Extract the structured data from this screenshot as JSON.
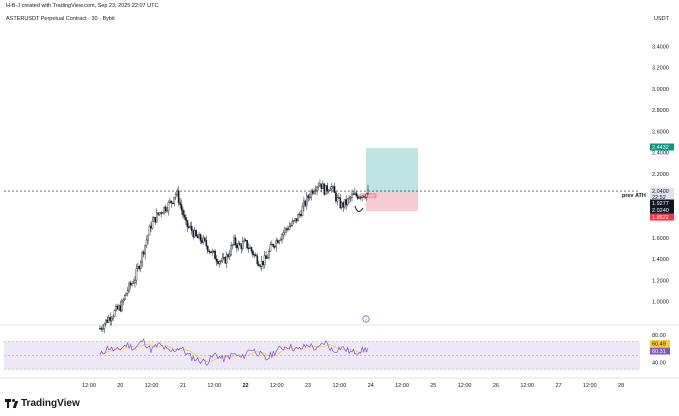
{
  "header": {
    "created_by": "H-B-J created with TradingView.com, Sep 23, 2025 22:07 UTC",
    "symbol_line": "ASTERUSDT Perpetual Contract · 30 · Bybit",
    "currency": "USDT",
    "brand": "TradingView"
  },
  "colors": {
    "candle": "#131722",
    "profit_zone": "#b2dfdb",
    "loss_zone": "#f4c7cc",
    "profit_tag": "#089981",
    "loss_tag": "#f23645",
    "rsi_line": "#7e57c2",
    "rsi_ma": "#f7c948",
    "rsi_band": "#ede7f6"
  },
  "annotations": {
    "level_label": "prev ATH",
    "price_tags": [
      {
        "value": "2.4432",
        "kind": "target"
      },
      {
        "value": "2.0400",
        "kind": "entry"
      },
      {
        "value": "22:52",
        "kind": "countdown"
      },
      {
        "value": "1.9277",
        "kind": "last"
      },
      {
        "value": "2.0240",
        "kind": "last"
      },
      {
        "value": "1.8522",
        "kind": "stop"
      }
    ],
    "rsi_tags": [
      "60.49",
      "60.31"
    ],
    "marker": "✓"
  },
  "chart_data": {
    "type": "candlestick",
    "title": "ASTERUSDT Perpetual Contract · 30 · Bybit",
    "y_ticks": [
      "3.4000",
      "3.2000",
      "3.0000",
      "2.8000",
      "2.6000",
      "2.4000",
      "2.2000",
      "2.0000",
      "1.8000",
      "1.6000",
      "1.4000",
      "1.2000",
      "1.0000"
    ],
    "ylim": [
      0.8,
      3.6
    ],
    "x_ticks": [
      "12:00",
      "20",
      "12:00",
      "21",
      "12:00",
      "22",
      "12:00",
      "23",
      "12:00",
      "24",
      "12:00",
      "25",
      "12:00",
      "26",
      "12:00",
      "27",
      "12:00",
      "28"
    ],
    "price_path": [
      [
        0.0,
        0.75
      ],
      [
        0.04,
        0.87
      ],
      [
        0.08,
        0.96
      ],
      [
        0.1,
        1.1
      ],
      [
        0.13,
        1.22
      ],
      [
        0.15,
        1.38
      ],
      [
        0.17,
        1.55
      ],
      [
        0.19,
        1.72
      ],
      [
        0.21,
        1.8
      ],
      [
        0.23,
        1.86
      ],
      [
        0.25,
        1.9
      ],
      [
        0.27,
        1.95
      ],
      [
        0.28,
        2.02
      ],
      [
        0.29,
        2.0
      ],
      [
        0.3,
        1.9
      ],
      [
        0.31,
        1.82
      ],
      [
        0.32,
        1.72
      ],
      [
        0.34,
        1.68
      ],
      [
        0.36,
        1.6
      ],
      [
        0.38,
        1.58
      ],
      [
        0.4,
        1.52
      ],
      [
        0.42,
        1.45
      ],
      [
        0.44,
        1.4
      ],
      [
        0.46,
        1.37
      ],
      [
        0.48,
        1.45
      ],
      [
        0.5,
        1.56
      ],
      [
        0.52,
        1.52
      ],
      [
        0.54,
        1.55
      ],
      [
        0.56,
        1.5
      ],
      [
        0.58,
        1.42
      ],
      [
        0.6,
        1.36
      ],
      [
        0.62,
        1.4
      ],
      [
        0.64,
        1.52
      ],
      [
        0.66,
        1.58
      ],
      [
        0.68,
        1.64
      ],
      [
        0.7,
        1.7
      ],
      [
        0.72,
        1.73
      ],
      [
        0.74,
        1.8
      ],
      [
        0.76,
        1.9
      ],
      [
        0.78,
        2.0
      ],
      [
        0.8,
        2.08
      ],
      [
        0.82,
        2.12
      ],
      [
        0.84,
        2.04
      ],
      [
        0.86,
        2.1
      ],
      [
        0.88,
        1.98
      ],
      [
        0.9,
        1.9
      ],
      [
        0.92,
        1.93
      ],
      [
        0.94,
        1.99
      ],
      [
        1.0,
        2.02
      ]
    ],
    "prev_ath": 2.04,
    "position": {
      "entry": 2.04,
      "target": 2.4432,
      "stop": 1.8522
    },
    "rsi": {
      "y_ticks": [
        "80.00",
        "40.00"
      ],
      "ylim": [
        20,
        90
      ],
      "bands": [
        70,
        30
      ],
      "path": [
        [
          0.0,
          50
        ],
        [
          0.03,
          62
        ],
        [
          0.06,
          56
        ],
        [
          0.1,
          66
        ],
        [
          0.13,
          60
        ],
        [
          0.16,
          72
        ],
        [
          0.19,
          58
        ],
        [
          0.22,
          66
        ],
        [
          0.26,
          55
        ],
        [
          0.3,
          62
        ],
        [
          0.33,
          50
        ],
        [
          0.36,
          44
        ],
        [
          0.4,
          40
        ],
        [
          0.43,
          52
        ],
        [
          0.46,
          44
        ],
        [
          0.5,
          52
        ],
        [
          0.53,
          46
        ],
        [
          0.56,
          60
        ],
        [
          0.59,
          54
        ],
        [
          0.62,
          44
        ],
        [
          0.66,
          58
        ],
        [
          0.7,
          64
        ],
        [
          0.74,
          58
        ],
        [
          0.78,
          66
        ],
        [
          0.81,
          58
        ],
        [
          0.84,
          70
        ],
        [
          0.87,
          56
        ],
        [
          0.9,
          62
        ],
        [
          0.94,
          54
        ],
        [
          1.0,
          60
        ]
      ]
    }
  }
}
